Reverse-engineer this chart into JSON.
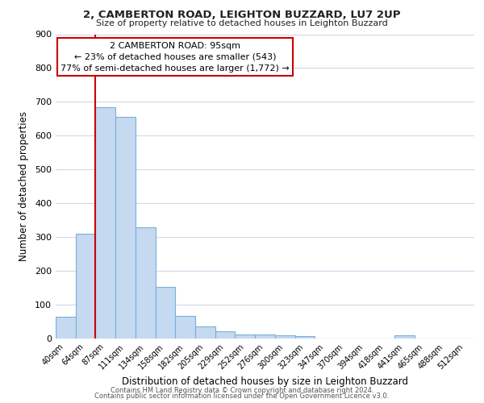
{
  "title1": "2, CAMBERTON ROAD, LEIGHTON BUZZARD, LU7 2UP",
  "title2": "Size of property relative to detached houses in Leighton Buzzard",
  "xlabel": "Distribution of detached houses by size in Leighton Buzzard",
  "ylabel": "Number of detached properties",
  "bin_labels": [
    "40sqm",
    "64sqm",
    "87sqm",
    "111sqm",
    "134sqm",
    "158sqm",
    "182sqm",
    "205sqm",
    "229sqm",
    "252sqm",
    "276sqm",
    "300sqm",
    "323sqm",
    "347sqm",
    "370sqm",
    "394sqm",
    "418sqm",
    "441sqm",
    "465sqm",
    "488sqm",
    "512sqm"
  ],
  "bar_heights": [
    65,
    310,
    685,
    655,
    330,
    152,
    67,
    35,
    22,
    11,
    11,
    10,
    8,
    0,
    0,
    0,
    0,
    10,
    0,
    0,
    0
  ],
  "bar_color": "#c5d9f0",
  "bar_edge_color": "#7ab0d8",
  "vline_color": "#cc0000",
  "ylim": [
    0,
    900
  ],
  "yticks": [
    0,
    100,
    200,
    300,
    400,
    500,
    600,
    700,
    800,
    900
  ],
  "annotation_line1": "2 CAMBERTON ROAD: 95sqm",
  "annotation_line2": "← 23% of detached houses are smaller (543)",
  "annotation_line3": "77% of semi-detached houses are larger (1,772) →",
  "footer1": "Contains HM Land Registry data © Crown copyright and database right 2024.",
  "footer2": "Contains public sector information licensed under the Open Government Licence v3.0.",
  "background_color": "#ffffff",
  "grid_color": "#d0d8e8"
}
